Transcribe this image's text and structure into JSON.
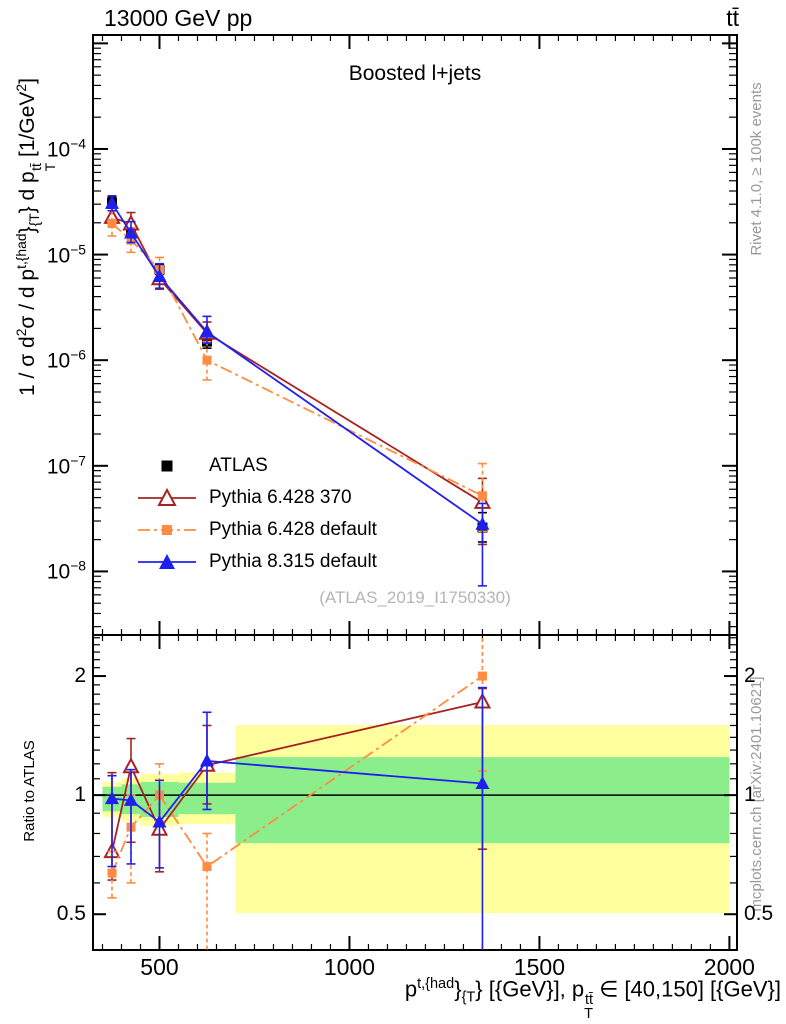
{
  "chart_data": {
    "type": "line",
    "title": "Boosted l+jets",
    "top_left_label": "13000 GeV pp",
    "top_right_label": "tt̄",
    "watermark": "(ATLAS_2019_I1750330)",
    "side_note_top": "Rivet 4.1.0, ≥ 100k events",
    "side_note_bottom": "mcplots.cern.ch [arXiv:2401.10621]",
    "ratio_ylabel": "Ratio to ATLAS",
    "ylabel_parts": [
      {
        "t": "1 / σ d"
      },
      {
        "sup": "2"
      },
      {
        "t": "σ / d p"
      },
      {
        "sup": "t,{had"
      },
      {
        "t": "}"
      },
      {
        "sub": "{T"
      },
      {
        "t": "} d p"
      },
      {
        "stack": {
          "sup": "tt̄",
          "sub": "T"
        }
      },
      {
        "t": " [1/GeV"
      },
      {
        "sup": "2"
      },
      {
        "t": "]"
      }
    ],
    "xlabel_parts": [
      {
        "t": "p"
      },
      {
        "sup": "t,{had"
      },
      {
        "t": "}"
      },
      {
        "sub": "{T"
      },
      {
        "t": "} [{GeV}], p"
      },
      {
        "stack": {
          "sup": "tt̄",
          "sub": "T"
        }
      },
      {
        "t": " ∈ [40,150] [{GeV}]"
      }
    ],
    "x_axis": {
      "lim": [
        325,
        2020
      ],
      "major_ticks": [
        500,
        1000,
        1500,
        2000
      ],
      "minor_step": 50
    },
    "y_main_axis": {
      "scale": "log",
      "lim": [
        2.5e-09,
        0.0012
      ],
      "labeled_decades": [
        -4,
        -5,
        -6,
        -7,
        -8
      ]
    },
    "y_ratio_axis": {
      "scale": "log",
      "lim": [
        0.406,
        2.54
      ],
      "major_ticks": [
        0.5,
        1,
        2
      ],
      "minor_ticks": [
        0.6,
        0.7,
        0.8,
        0.9,
        1.1,
        1.2,
        1.3,
        1.4,
        1.5,
        1.6,
        1.7,
        1.8,
        1.9,
        2.1,
        2.2,
        2.3,
        2.4,
        2.5
      ],
      "reference_line": 1
    },
    "bin_edges": [
      350,
      400,
      450,
      550,
      700,
      2000
    ],
    "x_centers": [
      375,
      425,
      500,
      625,
      1350
    ],
    "bands": {
      "yellow_color": "#ffff9d",
      "green_color": "#8bee8b",
      "yellow": [
        [
          0.88,
          1.08
        ],
        [
          0.86,
          1.105
        ],
        [
          0.835,
          1.13
        ],
        [
          0.845,
          1.14
        ],
        [
          0.503,
          1.504
        ]
      ],
      "green": [
        [
          0.91,
          1.05
        ],
        [
          0.895,
          1.065
        ],
        [
          0.88,
          1.08
        ],
        [
          0.895,
          1.075
        ],
        [
          0.756,
          1.248
        ]
      ]
    },
    "series": [
      {
        "name": "ATLAS",
        "color": "#000000",
        "marker": "square",
        "marker_size": 10,
        "line": "none",
        "values": [
          3.1e-05,
          1.65e-05,
          7.2e-06,
          1.5e-06,
          2.6e-08
        ],
        "err_lo": [
          2.75e-05,
          1.45e-05,
          6.5e-06,
          1.3e-06,
          1.9e-08
        ],
        "err_hi": [
          3.5e-05,
          1.85e-05,
          8e-06,
          1.75e-06,
          3.6e-08
        ]
      },
      {
        "name": "Pythia 6.428 370",
        "color": "#a52422",
        "marker": "triangle-open",
        "marker_size": 13,
        "line": "solid",
        "values": [
          2.25e-05,
          1.95e-05,
          5.9e-06,
          1.8e-06,
          4.5e-08
        ],
        "err_lo": [
          1.9e-05,
          1.6e-05,
          4.7e-06,
          1.5e-06,
          1.8e-08
        ],
        "err_hi": [
          2.8e-05,
          2.5e-05,
          7.3e-06,
          2.3e-06,
          7.6e-08
        ],
        "ratio": [
          0.72,
          1.18,
          0.82,
          1.19,
          1.72
        ],
        "ratio_err_lo": [
          0.61,
          0.76,
          0.64,
          0.95,
          0.73
        ],
        "ratio_err_hi": [
          1.14,
          1.39,
          1.02,
          1.5,
          1.86
        ]
      },
      {
        "name": "Pythia 6.428 default",
        "color": "#ff8c42",
        "marker": "square",
        "marker_size": 9,
        "line": "dashdot",
        "values": [
          1.97e-05,
          1.37e-05,
          7.2e-06,
          1e-06,
          5.2e-08
        ],
        "err_lo": [
          1.5e-05,
          1.05e-05,
          5.6e-06,
          6.5e-07,
          2.4e-08
        ],
        "err_hi": [
          2.6e-05,
          1.8e-05,
          9.4e-06,
          1.5e-06,
          1.05e-07
        ],
        "ratio": [
          0.635,
          0.83,
          1.0,
          0.66,
          2.0
        ],
        "ratio_err_lo": [
          0.55,
          0.6,
          0.86,
          0.38,
          1.15
        ],
        "ratio_err_hi": [
          0.72,
          1.0,
          1.2,
          0.8,
          2.6
        ]
      },
      {
        "name": "Pythia 8.315 default",
        "color": "#2020ee",
        "marker": "triangle",
        "marker_size": 13,
        "line": "solid",
        "values": [
          3.05e-05,
          1.6e-05,
          6.2e-06,
          1.85e-06,
          2.8e-08
        ],
        "err_lo": [
          2.6e-05,
          1.3e-05,
          4.8e-06,
          1.45e-06,
          7.3e-09
        ],
        "err_hi": [
          3.6e-05,
          2.05e-05,
          8.2e-06,
          2.6e-06,
          4.4e-08
        ],
        "ratio": [
          0.98,
          0.97,
          0.855,
          1.22,
          1.07
        ],
        "ratio_err_lo": [
          0.66,
          0.67,
          0.655,
          0.92,
          0.3
        ],
        "ratio_err_hi": [
          1.12,
          1.16,
          1.09,
          1.62,
          1.87
        ]
      }
    ]
  }
}
